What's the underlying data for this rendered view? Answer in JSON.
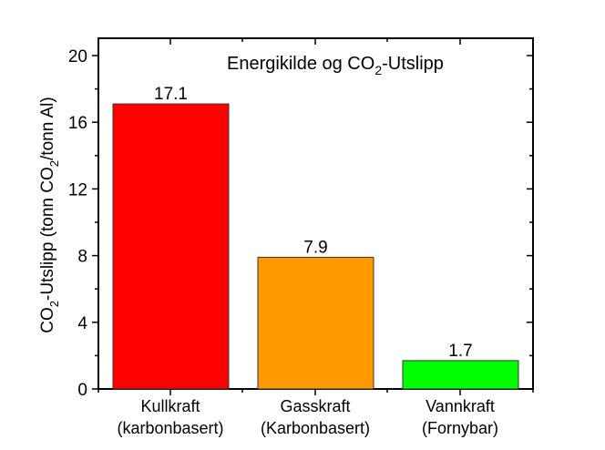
{
  "chart_data": {
    "type": "bar",
    "title": "Energikilde og CO2-Utslipp",
    "title_parts": {
      "pre": "Energikilde og CO",
      "sub": "2",
      "post": "-Utslipp"
    },
    "xlabel": "",
    "ylabel": "CO2-Utslipp (tonn CO2/tonn Al)",
    "ylabel_parts": {
      "a": "CO",
      "sub1": "2",
      "b": "-Utslipp (tonn CO",
      "sub2": "2",
      "c": "/tonn Al)"
    },
    "categories": [
      {
        "line1": "Kullkraft",
        "line2": "(karbonbasert)"
      },
      {
        "line1": "Gasskraft",
        "line2": "(Karbonbasert)"
      },
      {
        "line1": "Vannkraft",
        "line2": "(Fornybar)"
      }
    ],
    "values": [
      17.1,
      7.9,
      1.7
    ],
    "value_labels": [
      "17.1",
      "7.9",
      "1.7"
    ],
    "colors": [
      "#ff0000",
      "#ff9900",
      "#00ff00"
    ],
    "ylim": [
      0,
      21
    ],
    "yticks": [
      0,
      4,
      8,
      12,
      16,
      20
    ],
    "ytick_labels": [
      "0",
      "4",
      "8",
      "12",
      "16",
      "20"
    ],
    "grid": false,
    "legend": null
  }
}
